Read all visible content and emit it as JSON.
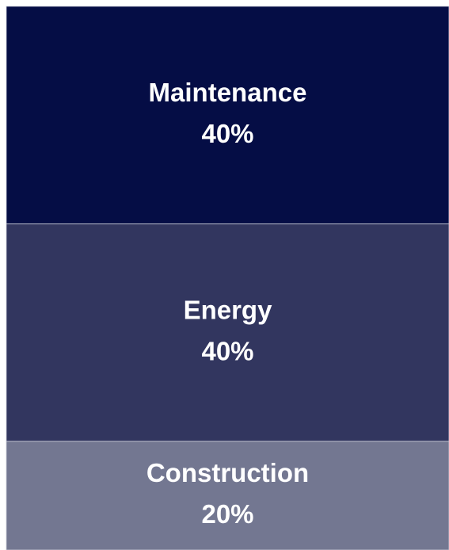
{
  "chart_data": {
    "type": "stacked_bar",
    "series": [
      {
        "name": "Construction",
        "color": "#737791",
        "values": [
          20
        ],
        "value_labels": [
          "20%"
        ]
      },
      {
        "name": "Energy",
        "color": "#32365f",
        "values": [
          40
        ],
        "value_labels": [
          "40%"
        ]
      },
      {
        "name": "Maintenance",
        "color": "#050d45",
        "values": [
          40
        ],
        "value_labels": [
          "40%"
        ]
      }
    ]
  }
}
